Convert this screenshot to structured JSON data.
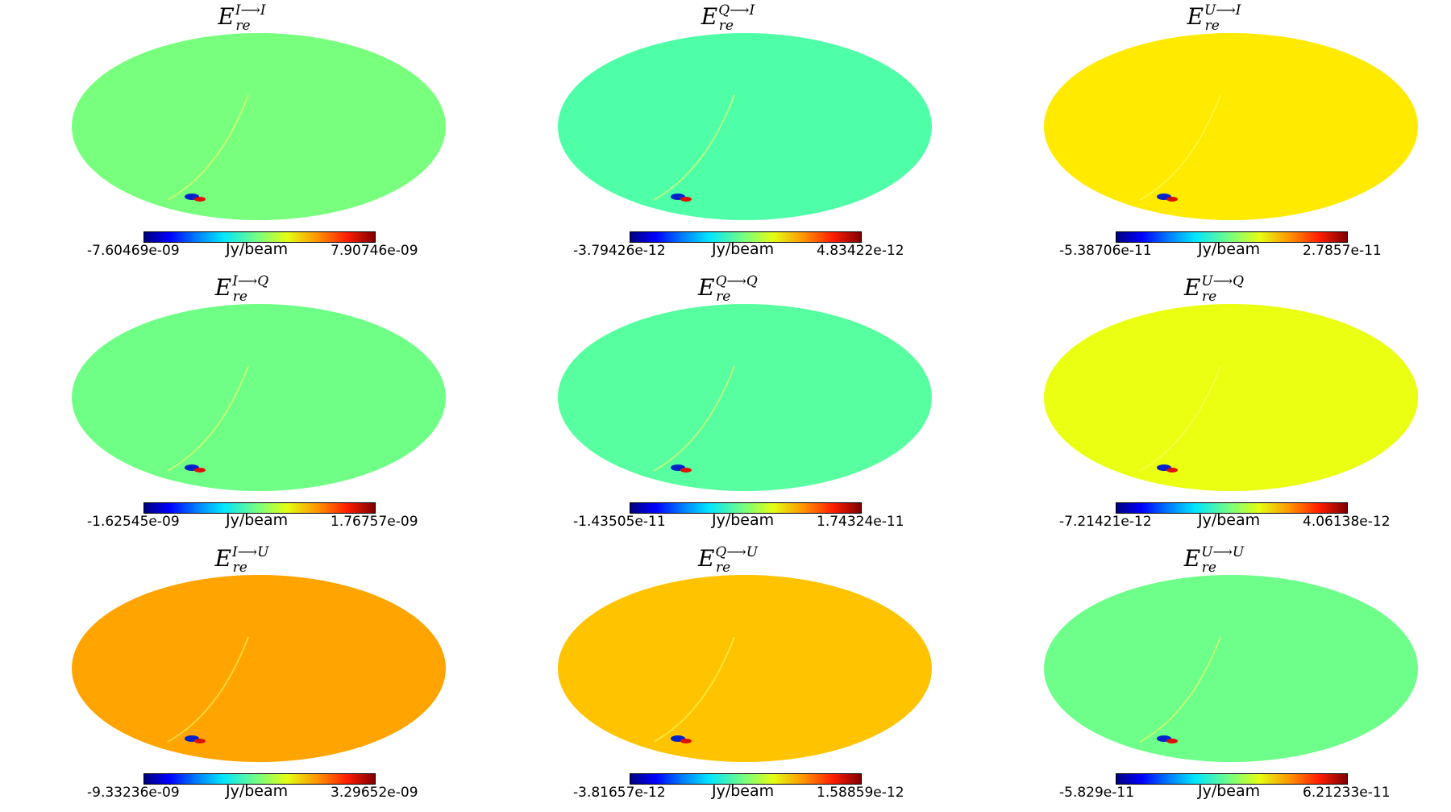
{
  "chart_data": [
    {
      "type": "heatmap",
      "title": {
        "base": "E",
        "sup": "I⟶I",
        "sub": "re"
      },
      "unit": "Jy/beam",
      "range": [
        -7.60469e-09,
        7.90746e-09
      ],
      "vmin_label": "-7.60469e-09",
      "vmax_label": "7.90746e-09",
      "background": "#79ff7e",
      "feature": "arc"
    },
    {
      "type": "heatmap",
      "title": {
        "base": "E",
        "sup": "Q⟶I",
        "sub": "re"
      },
      "unit": "Jy/beam",
      "range": [
        -3.79426e-12,
        4.83422e-12
      ],
      "vmin_label": "-3.79426e-12",
      "vmax_label": "4.83422e-12",
      "background": "#4fffa8",
      "feature": "arc"
    },
    {
      "type": "heatmap",
      "title": {
        "base": "E",
        "sup": "U⟶I",
        "sub": "re"
      },
      "unit": "Jy/beam",
      "range": [
        -5.38706e-11,
        2.7857e-11
      ],
      "vmin_label": "-5.38706e-11",
      "vmax_label": "2.7857e-11",
      "background": "#ffea00",
      "feature": "arc"
    },
    {
      "type": "heatmap",
      "title": {
        "base": "E",
        "sup": "I⟶Q",
        "sub": "re"
      },
      "unit": "Jy/beam",
      "range": [
        -1.62545e-09,
        1.76757e-09
      ],
      "vmin_label": "-1.62545e-09",
      "vmax_label": "1.76757e-09",
      "background": "#70ff86",
      "feature": "arc"
    },
    {
      "type": "heatmap",
      "title": {
        "base": "E",
        "sup": "Q⟶Q",
        "sub": "re"
      },
      "unit": "Jy/beam",
      "range": [
        -1.43505e-11,
        1.74324e-11
      ],
      "vmin_label": "-1.43505e-11",
      "vmax_label": "1.74324e-11",
      "background": "#58ffa0",
      "feature": "arc"
    },
    {
      "type": "heatmap",
      "title": {
        "base": "E",
        "sup": "U⟶Q",
        "sub": "re"
      },
      "unit": "Jy/beam",
      "range": [
        -7.21421e-12,
        4.06138e-12
      ],
      "vmin_label": "-7.21421e-12",
      "vmax_label": "4.06138e-12",
      "background": "#ebff12",
      "feature": "arc"
    },
    {
      "type": "heatmap",
      "title": {
        "base": "E",
        "sup": "I⟶U",
        "sub": "re"
      },
      "unit": "Jy/beam",
      "range": [
        -9.33236e-09,
        3.29652e-09
      ],
      "vmin_label": "-9.33236e-09",
      "vmax_label": "3.29652e-09",
      "background": "#ffa400",
      "feature": "arc"
    },
    {
      "type": "heatmap",
      "title": {
        "base": "E",
        "sup": "Q⟶U",
        "sub": "re"
      },
      "unit": "Jy/beam",
      "range": [
        -3.81657e-12,
        1.58859e-12
      ],
      "vmin_label": "-3.81657e-12",
      "vmax_label": "1.58859e-12",
      "background": "#ffc300",
      "feature": "arc"
    },
    {
      "type": "heatmap",
      "title": {
        "base": "E",
        "sup": "U⟶U",
        "sub": "re"
      },
      "unit": "Jy/beam",
      "range": [
        -5.829e-11,
        6.21233e-11
      ],
      "vmin_label": "-5.829e-11",
      "vmax_label": "6.21233e-11",
      "background": "#6dff89",
      "feature": "arc"
    }
  ]
}
